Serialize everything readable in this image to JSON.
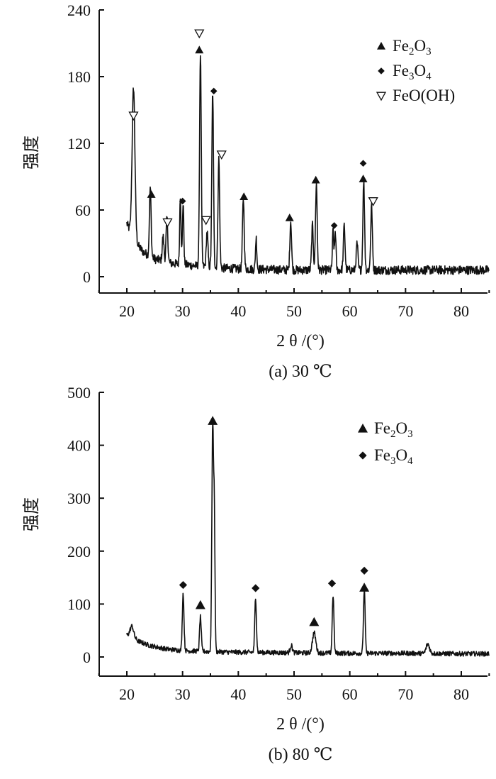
{
  "chart_data": [
    {
      "type": "line",
      "caption": "(a) 30 ℃",
      "xlabel": "2 θ /(°)",
      "ylabel": "强度",
      "xlim": [
        15,
        85
      ],
      "ylim": [
        0,
        240
      ],
      "xticks": [
        20,
        30,
        40,
        50,
        60,
        70,
        80
      ],
      "yticks": [
        0,
        60,
        120,
        180,
        240
      ],
      "legend_position": "top-right",
      "legend": [
        {
          "marker": "filled-triangle",
          "label": "Fe2O3",
          "base1": "Fe",
          "sub1": "2",
          "base2": "O",
          "sub2": "3"
        },
        {
          "marker": "diamond",
          "label": "Fe3O4",
          "base1": "Fe",
          "sub1": "3",
          "base2": "O",
          "sub2": "4"
        },
        {
          "marker": "open-triangle-down",
          "label": "FeO(OH)",
          "base1": "FeO(OH)",
          "sub1": "",
          "base2": "",
          "sub2": ""
        }
      ],
      "baseline": [
        [
          20,
          48
        ],
        [
          21,
          36
        ],
        [
          22,
          28
        ],
        [
          23,
          22
        ],
        [
          25,
          16
        ],
        [
          28,
          12
        ],
        [
          32,
          10
        ],
        [
          36,
          8
        ],
        [
          40,
          7
        ],
        [
          50,
          6
        ],
        [
          60,
          6
        ],
        [
          70,
          6
        ],
        [
          80,
          6
        ]
      ],
      "peaks": [
        {
          "x": 21.2,
          "y": 136,
          "w": 0.25
        },
        {
          "x": 24.2,
          "y": 62,
          "w": 0.15
        },
        {
          "x": 26.5,
          "y": 22,
          "w": 0.15
        },
        {
          "x": 27.2,
          "y": 40,
          "w": 0.15
        },
        {
          "x": 29.6,
          "y": 62,
          "w": 0.12
        },
        {
          "x": 30.1,
          "y": 56,
          "w": 0.12
        },
        {
          "x": 33.2,
          "y": 192,
          "w": 0.15
        },
        {
          "x": 34.4,
          "y": 32,
          "w": 0.15
        },
        {
          "x": 35.4,
          "y": 158,
          "w": 0.15
        },
        {
          "x": 36.5,
          "y": 98,
          "w": 0.15
        },
        {
          "x": 40.9,
          "y": 64,
          "w": 0.15
        },
        {
          "x": 43.2,
          "y": 28,
          "w": 0.12
        },
        {
          "x": 49.4,
          "y": 44,
          "w": 0.15
        },
        {
          "x": 53.3,
          "y": 40,
          "w": 0.15
        },
        {
          "x": 54.0,
          "y": 78,
          "w": 0.15
        },
        {
          "x": 57.0,
          "y": 36,
          "w": 0.12
        },
        {
          "x": 57.4,
          "y": 35,
          "w": 0.12
        },
        {
          "x": 59.0,
          "y": 40,
          "w": 0.15
        },
        {
          "x": 61.3,
          "y": 24,
          "w": 0.15
        },
        {
          "x": 62.5,
          "y": 80,
          "w": 0.15
        },
        {
          "x": 63.9,
          "y": 58,
          "w": 0.15
        }
      ],
      "markers": [
        {
          "x": 21.2,
          "y": 145,
          "type": "open-triangle-down"
        },
        {
          "x": 24.4,
          "y": 74,
          "type": "filled-triangle"
        },
        {
          "x": 27.3,
          "y": 49,
          "type": "open-triangle-down"
        },
        {
          "x": 30.0,
          "y": 68,
          "type": "diamond"
        },
        {
          "x": 33.0,
          "y": 219,
          "type": "open-triangle-down"
        },
        {
          "x": 33.0,
          "y": 204,
          "type": "filled-triangle"
        },
        {
          "x": 34.2,
          "y": 51,
          "type": "open-triangle-down"
        },
        {
          "x": 35.6,
          "y": 167,
          "type": "diamond"
        },
        {
          "x": 37.0,
          "y": 110,
          "type": "open-triangle-down"
        },
        {
          "x": 41.0,
          "y": 72,
          "type": "filled-triangle"
        },
        {
          "x": 49.2,
          "y": 53,
          "type": "filled-triangle"
        },
        {
          "x": 53.9,
          "y": 87,
          "type": "filled-triangle"
        },
        {
          "x": 57.2,
          "y": 46,
          "type": "diamond"
        },
        {
          "x": 62.4,
          "y": 102,
          "type": "diamond"
        },
        {
          "x": 62.4,
          "y": 88,
          "type": "filled-triangle"
        },
        {
          "x": 64.2,
          "y": 68,
          "type": "open-triangle-down"
        }
      ]
    },
    {
      "type": "line",
      "caption": "(b) 80 ℃",
      "xlabel": "2 θ /(°)",
      "ylabel": "强度",
      "xlim": [
        15,
        85
      ],
      "ylim": [
        0,
        500
      ],
      "xticks": [
        20,
        30,
        40,
        50,
        60,
        70,
        80
      ],
      "yticks": [
        0,
        100,
        200,
        300,
        400,
        500
      ],
      "legend_position": "top-right",
      "legend": [
        {
          "marker": "filled-triangle",
          "label": "Fe2O3",
          "base1": "Fe",
          "sub1": "2",
          "base2": "O",
          "sub2": "3"
        },
        {
          "marker": "diamond",
          "label": "Fe3O4",
          "base1": "Fe",
          "sub1": "3",
          "base2": "O",
          "sub2": "4"
        }
      ],
      "baseline": [
        [
          20,
          42
        ],
        [
          21,
          40
        ],
        [
          22,
          30
        ],
        [
          24,
          22
        ],
        [
          27,
          15
        ],
        [
          30,
          12
        ],
        [
          35,
          10
        ],
        [
          40,
          9
        ],
        [
          50,
          8
        ],
        [
          60,
          7
        ],
        [
          70,
          7
        ],
        [
          80,
          6
        ]
      ],
      "peaks": [
        {
          "x": 20.9,
          "y": 18,
          "w": 0.3
        },
        {
          "x": 30.1,
          "y": 108,
          "w": 0.15
        },
        {
          "x": 33.2,
          "y": 65,
          "w": 0.15
        },
        {
          "x": 35.4,
          "y": 425,
          "w": 0.15
        },
        {
          "x": 35.7,
          "y": 240,
          "w": 0.12
        },
        {
          "x": 43.1,
          "y": 102,
          "w": 0.15
        },
        {
          "x": 49.5,
          "y": 14,
          "w": 0.2
        },
        {
          "x": 53.6,
          "y": 38,
          "w": 0.3
        },
        {
          "x": 57.0,
          "y": 110,
          "w": 0.15
        },
        {
          "x": 62.6,
          "y": 120,
          "w": 0.15
        },
        {
          "x": 74.0,
          "y": 18,
          "w": 0.3
        }
      ],
      "markers": [
        {
          "x": 30.1,
          "y": 136,
          "type": "diamond"
        },
        {
          "x": 33.2,
          "y": 98,
          "type": "filled-triangle"
        },
        {
          "x": 35.4,
          "y": 446,
          "type": "filled-triangle"
        },
        {
          "x": 43.1,
          "y": 130,
          "type": "diamond"
        },
        {
          "x": 53.6,
          "y": 66,
          "type": "filled-triangle"
        },
        {
          "x": 56.8,
          "y": 139,
          "type": "diamond"
        },
        {
          "x": 62.6,
          "y": 163,
          "type": "diamond"
        },
        {
          "x": 62.6,
          "y": 131,
          "type": "filled-triangle"
        }
      ]
    }
  ]
}
